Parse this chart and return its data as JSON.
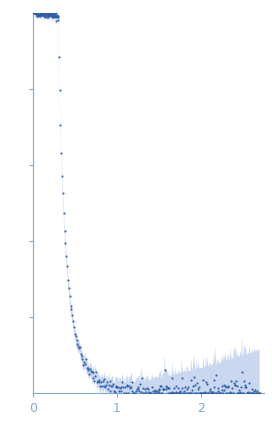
{
  "x_lim": [
    0,
    2.75
  ],
  "y_lim": [
    0.0,
    1.0
  ],
  "x_ticks": [
    0,
    1,
    2
  ],
  "y_ticks": [
    0.2,
    0.4,
    0.6,
    0.8
  ],
  "background_color": "#ffffff",
  "dot_color": "#2b5ca8",
  "band_color": "#b8ccec",
  "dot_size": 2.5,
  "axis_color": "#7aaad8",
  "spine_linewidth": 0.8,
  "tick_fontsize": 9,
  "seed": 42
}
